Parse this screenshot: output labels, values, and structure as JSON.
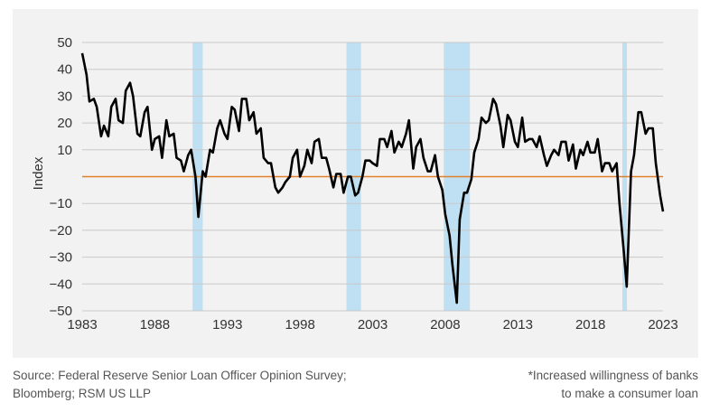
{
  "chart_data": {
    "type": "line",
    "title": "",
    "xlabel": "",
    "ylabel": "Index",
    "xlim": [
      1983,
      2023
    ],
    "ylim": [
      -50,
      50
    ],
    "x_ticks": [
      1983,
      1988,
      1993,
      1998,
      2003,
      2008,
      2013,
      2018,
      2023
    ],
    "y_ticks": [
      {
        "value": 50,
        "label": "50"
      },
      {
        "value": 40,
        "label": "40"
      },
      {
        "value": 30,
        "label": "30"
      },
      {
        "value": 20,
        "label": "20"
      },
      {
        "value": 10,
        "label": "10"
      },
      {
        "value": -10,
        "label": "−10"
      },
      {
        "value": -20,
        "label": "−20"
      },
      {
        "value": -30,
        "label": "−30"
      },
      {
        "value": -40,
        "label": "−40"
      },
      {
        "value": -50,
        "label": "−50"
      }
    ],
    "zero_line": 0,
    "recession_bands": [
      [
        1990.6,
        1991.3
      ],
      [
        2001.2,
        2002.2
      ],
      [
        2007.9,
        2009.7
      ],
      [
        2020.2,
        2020.5
      ]
    ],
    "series": [
      {
        "name": "Index",
        "color": "#000000",
        "points": [
          [
            1983.0,
            46
          ],
          [
            1983.3,
            38
          ],
          [
            1983.5,
            28
          ],
          [
            1983.8,
            29
          ],
          [
            1984.0,
            26
          ],
          [
            1984.3,
            15
          ],
          [
            1984.5,
            19
          ],
          [
            1984.8,
            15
          ],
          [
            1985.0,
            26
          ],
          [
            1985.3,
            29
          ],
          [
            1985.5,
            21
          ],
          [
            1985.8,
            20
          ],
          [
            1986.0,
            32
          ],
          [
            1986.3,
            35
          ],
          [
            1986.5,
            30
          ],
          [
            1986.8,
            16
          ],
          [
            1987.0,
            15
          ],
          [
            1987.3,
            24
          ],
          [
            1987.5,
            26
          ],
          [
            1987.8,
            10
          ],
          [
            1988.0,
            14
          ],
          [
            1988.3,
            15
          ],
          [
            1988.5,
            7
          ],
          [
            1988.8,
            21
          ],
          [
            1989.0,
            15
          ],
          [
            1989.3,
            16
          ],
          [
            1989.5,
            7
          ],
          [
            1989.8,
            6
          ],
          [
            1990.0,
            2
          ],
          [
            1990.3,
            8
          ],
          [
            1990.5,
            10
          ],
          [
            1990.8,
            0
          ],
          [
            1991.0,
            -15
          ],
          [
            1991.3,
            2
          ],
          [
            1991.5,
            0
          ],
          [
            1991.8,
            10
          ],
          [
            1992.0,
            9
          ],
          [
            1992.3,
            18
          ],
          [
            1992.5,
            21
          ],
          [
            1992.8,
            16
          ],
          [
            1993.0,
            14
          ],
          [
            1993.3,
            26
          ],
          [
            1993.5,
            25
          ],
          [
            1993.8,
            17
          ],
          [
            1994.0,
            29
          ],
          [
            1994.3,
            29
          ],
          [
            1994.5,
            21
          ],
          [
            1994.8,
            24
          ],
          [
            1995.0,
            16
          ],
          [
            1995.3,
            18
          ],
          [
            1995.5,
            7
          ],
          [
            1995.8,
            5
          ],
          [
            1996.0,
            5
          ],
          [
            1996.3,
            -4
          ],
          [
            1996.5,
            -6
          ],
          [
            1996.8,
            -4
          ],
          [
            1997.0,
            -2
          ],
          [
            1997.3,
            0
          ],
          [
            1997.5,
            7
          ],
          [
            1997.8,
            10
          ],
          [
            1998.0,
            0
          ],
          [
            1998.3,
            4
          ],
          [
            1998.5,
            10
          ],
          [
            1998.8,
            5
          ],
          [
            1999.0,
            13
          ],
          [
            1999.3,
            14
          ],
          [
            1999.5,
            7
          ],
          [
            1999.8,
            7
          ],
          [
            2000.0,
            3
          ],
          [
            2000.3,
            -4
          ],
          [
            2000.5,
            1
          ],
          [
            2000.8,
            1
          ],
          [
            2001.0,
            -6
          ],
          [
            2001.3,
            0
          ],
          [
            2001.5,
            0
          ],
          [
            2001.8,
            -7
          ],
          [
            2002.0,
            -6
          ],
          [
            2002.3,
            0
          ],
          [
            2002.5,
            6
          ],
          [
            2002.8,
            6
          ],
          [
            2003.0,
            5
          ],
          [
            2003.3,
            4
          ],
          [
            2003.5,
            14
          ],
          [
            2003.8,
            14
          ],
          [
            2004.0,
            11
          ],
          [
            2004.3,
            17
          ],
          [
            2004.5,
            9
          ],
          [
            2004.8,
            13
          ],
          [
            2005.0,
            11
          ],
          [
            2005.3,
            16
          ],
          [
            2005.5,
            21
          ],
          [
            2005.8,
            3
          ],
          [
            2006.0,
            11
          ],
          [
            2006.3,
            14
          ],
          [
            2006.5,
            7
          ],
          [
            2006.8,
            2
          ],
          [
            2007.0,
            2
          ],
          [
            2007.3,
            8
          ],
          [
            2007.5,
            0
          ],
          [
            2007.8,
            -5
          ],
          [
            2008.0,
            -14
          ],
          [
            2008.3,
            -22
          ],
          [
            2008.5,
            -33
          ],
          [
            2008.8,
            -47
          ],
          [
            2009.0,
            -16
          ],
          [
            2009.3,
            -6
          ],
          [
            2009.5,
            -6
          ],
          [
            2009.8,
            -1
          ],
          [
            2010.0,
            9
          ],
          [
            2010.3,
            14
          ],
          [
            2010.5,
            22
          ],
          [
            2010.8,
            20
          ],
          [
            2011.0,
            21
          ],
          [
            2011.3,
            29
          ],
          [
            2011.5,
            27
          ],
          [
            2011.8,
            19
          ],
          [
            2012.0,
            11
          ],
          [
            2012.3,
            23
          ],
          [
            2012.5,
            21
          ],
          [
            2012.8,
            13
          ],
          [
            2013.0,
            11
          ],
          [
            2013.3,
            22
          ],
          [
            2013.5,
            13
          ],
          [
            2013.8,
            14
          ],
          [
            2014.0,
            14
          ],
          [
            2014.3,
            11
          ],
          [
            2014.5,
            15
          ],
          [
            2014.8,
            8
          ],
          [
            2015.0,
            4
          ],
          [
            2015.3,
            8
          ],
          [
            2015.5,
            10
          ],
          [
            2015.8,
            8
          ],
          [
            2016.0,
            13
          ],
          [
            2016.3,
            13
          ],
          [
            2016.5,
            6
          ],
          [
            2016.8,
            12
          ],
          [
            2017.0,
            3
          ],
          [
            2017.3,
            10
          ],
          [
            2017.5,
            8
          ],
          [
            2017.8,
            13
          ],
          [
            2018.0,
            9
          ],
          [
            2018.3,
            9
          ],
          [
            2018.5,
            14
          ],
          [
            2018.8,
            2
          ],
          [
            2019.0,
            5
          ],
          [
            2019.3,
            5
          ],
          [
            2019.5,
            2
          ],
          [
            2019.8,
            5
          ],
          [
            2020.0,
            -10
          ],
          [
            2020.3,
            -28
          ],
          [
            2020.5,
            -41
          ],
          [
            2020.8,
            2
          ],
          [
            2021.0,
            8
          ],
          [
            2021.3,
            24
          ],
          [
            2021.5,
            24
          ],
          [
            2021.8,
            16
          ],
          [
            2022.0,
            18
          ],
          [
            2022.3,
            18
          ],
          [
            2022.5,
            5
          ],
          [
            2022.8,
            -7
          ],
          [
            2023.0,
            -13
          ]
        ]
      }
    ]
  },
  "footer": {
    "source_line1": "Source: Federal Reserve Senior Loan Officer Opinion Survey;",
    "source_line2": "Bloomberg; RSM US LLP",
    "note_line1": "*Increased willingness of banks",
    "note_line2": "to make a consumer loan"
  },
  "colors": {
    "panel_bg": "#f2f2f2",
    "gridline": "#c9c9c9",
    "recession_band": "#bfe0f2",
    "zero_line": "#e0802a",
    "series_line": "#000000",
    "text": "#333333",
    "footer_text": "#555555"
  }
}
